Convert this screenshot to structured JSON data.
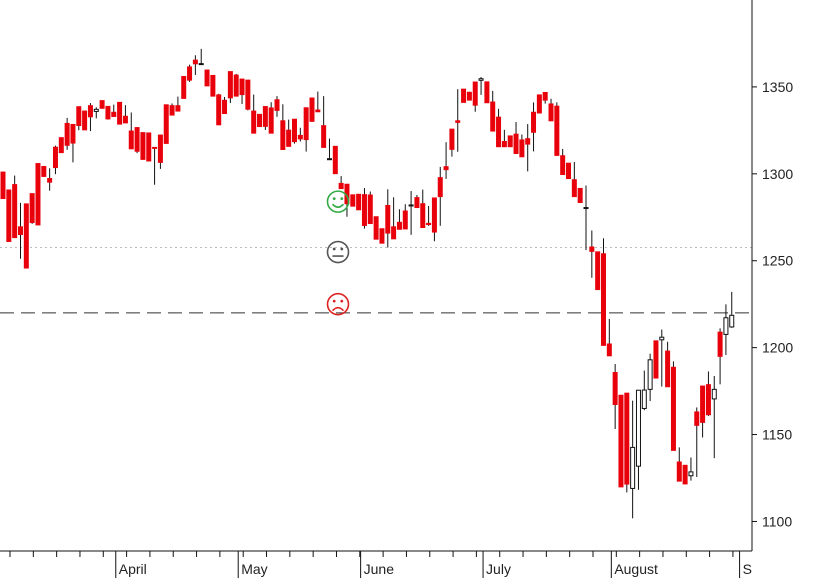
{
  "chart_data": {
    "type": "candlestick",
    "y_axis": {
      "position": "right",
      "ylim": [
        1083,
        1400
      ],
      "ticks": [
        1100,
        1150,
        1200,
        1250,
        1300,
        1350
      ],
      "tick_labels": [
        "1100",
        "1150",
        "1200",
        "1250",
        "1300",
        "1350"
      ]
    },
    "x_axis": {
      "months": [
        {
          "label": "April",
          "index": 19
        },
        {
          "label": "May",
          "index": 40
        },
        {
          "label": "June",
          "index": 61
        },
        {
          "label": "July",
          "index": 82
        },
        {
          "label": "August",
          "index": 104
        },
        {
          "label": "S",
          "index": 126
        }
      ]
    },
    "reference_lines": [
      {
        "value": 1257.6,
        "style": "dotted",
        "color": "#bbbbbb"
      },
      {
        "value": 1220.0,
        "style": "dashed",
        "color": "#333333"
      }
    ],
    "indicators": [
      {
        "name": "smiley-face",
        "symbol": "☺",
        "color": "#33aa44",
        "value": 1284
      },
      {
        "name": "neutral-face",
        "symbol": "😐",
        "color": "#555555",
        "value": 1255
      },
      {
        "name": "sad-face",
        "symbol": "☹",
        "color": "#dd2222",
        "value": 1225
      }
    ],
    "colors": {
      "up": "#ffffff",
      "up_border": "#111111",
      "down": "#e8000b",
      "wick": "#111111"
    },
    "candles": [
      [
        1296.1,
        1301.0,
        1285.8,
        1289.2
      ],
      [
        1288.0,
        1290.7,
        1261.1,
        1285.7
      ],
      [
        1291.3,
        1293.8,
        1263.3,
        1299.0
      ],
      [
        1251.1,
        1269.5,
        1265.1,
        1283.3
      ],
      [
        1281.9,
        1282.7,
        1245.8,
        1271.2
      ],
      [
        1271.2,
        1288.6,
        1272.0,
        1288.0
      ],
      [
        1287.7,
        1305.9,
        1270.6,
        1301.8
      ],
      [
        1299.0,
        1304.2,
        1298.5,
        1299.5
      ],
      [
        1290.3,
        1297.3,
        1295.2,
        1303.2
      ],
      [
        1299.8,
        1315.3,
        1303.6,
        1316.2
      ],
      [
        1312.6,
        1320.8,
        1312.2,
        1316.1
      ],
      [
        1313.8,
        1329.0,
        1316.4,
        1332.2
      ],
      [
        1306.6,
        1328.4,
        1317.7,
        1325.0
      ],
      [
        1325.1,
        1338.6,
        1327.8,
        1335.5
      ],
      [
        1327.1,
        1336.1,
        1325.3,
        1335.5
      ],
      [
        1324.6,
        1339.2,
        1332.8,
        1340.7
      ],
      [
        1331.9,
        1335.9,
        1337.1,
        1338.3
      ],
      [
        1338.4,
        1342.1,
        1337.7,
        1341.2
      ],
      [
        1331.2,
        1338.8,
        1331.6,
        1338.8
      ],
      [
        1336.6,
        1335.4,
        1333.0,
        1339.8
      ],
      [
        1341.2,
        1341.1,
        1328.6,
        1338.6
      ],
      [
        1336.5,
        1333.1,
        1329.3,
        1339.5
      ],
      [
        1331.5,
        1324.6,
        1314.4,
        1335.3
      ],
      [
        1311.9,
        1326.6,
        1313.0,
        1316.5
      ],
      [
        1314.1,
        1323.7,
        1308.3,
        1318.2
      ],
      [
        1313.2,
        1323.5,
        1307.4,
        1321.0
      ],
      [
        1293.7,
        1315.2,
        1315.1,
        1305.4
      ],
      [
        1302.8,
        1322.3,
        1306.6,
        1310.4
      ],
      [
        1326.6,
        1339.7,
        1317.5,
        1339.8
      ],
      [
        1337.6,
        1339.2,
        1333.8,
        1340.5
      ],
      [
        1336.3,
        1339.2,
        1336.1,
        1344.4
      ],
      [
        1345.2,
        1356.0,
        1343.4,
        1355.7
      ],
      [
        1352.9,
        1361.5,
        1353.9,
        1362.8
      ],
      [
        1356.9,
        1365.4,
        1363.3,
        1368.2
      ],
      [
        1367.8,
        1362.9,
        1363.4,
        1371.9
      ],
      [
        1359.2,
        1359.7,
        1350.6,
        1354.1
      ],
      [
        1353.7,
        1356.6,
        1344.7,
        1348.7
      ],
      [
        1346.0,
        1345.4,
        1328.2,
        1335.6
      ],
      [
        1342.7,
        1342.3,
        1334.7,
        1344.2
      ],
      [
        1340.7,
        1358.8,
        1343.7,
        1357.6
      ],
      [
        1357.5,
        1356.8,
        1344.7,
        1351.1
      ],
      [
        1340.2,
        1354.5,
        1345.6,
        1352.2
      ],
      [
        1336.5,
        1353.9,
        1337.2,
        1345.5
      ],
      [
        1345.6,
        1336.1,
        1323.4,
        1337.3
      ],
      [
        1329.0,
        1334.2,
        1327.2,
        1331.0
      ],
      [
        1325.2,
        1338.7,
        1327.3,
        1329.1
      ],
      [
        1325.1,
        1337.9,
        1323.4,
        1341.2
      ],
      [
        1332.8,
        1342.6,
        1336.5,
        1344.7
      ],
      [
        1340.0,
        1330.5,
        1314.0,
        1337.5
      ],
      [
        1327.0,
        1325.1,
        1315.8,
        1331.2
      ],
      [
        1317.4,
        1331.4,
        1318.5,
        1322.8
      ],
      [
        1318.6,
        1322.1,
        1320.1,
        1326.5
      ],
      [
        1312.8,
        1338.0,
        1319.7,
        1331.3
      ],
      [
        1330.6,
        1343.6,
        1330.2,
        1343.1
      ],
      [
        1344.4,
        1336.7,
        1335.7,
        1347.3
      ],
      [
        1344.4,
        1327.7,
        1315.2,
        1344.7
      ],
      [
        1320.3,
        1308.6,
        1308.7,
        1316.2
      ],
      [
        1299.9,
        1315.8,
        1300.1,
        1300.6
      ],
      [
        1298.7,
        1294.5,
        1291.5,
        1293.8
      ],
      [
        1275.3,
        1294.0,
        1282.8,
        1286.2
      ],
      [
        1283.7,
        1287.9,
        1281.4,
        1286.4
      ],
      [
        1285.1,
        1288.2,
        1279.3,
        1283.5
      ],
      [
        1268.5,
        1288.0,
        1270.3,
        1291.8
      ],
      [
        1281.1,
        1287.8,
        1271.4,
        1289.8
      ],
      [
        1270.9,
        1275.3,
        1262.4,
        1263.7
      ],
      [
        1264.9,
        1268.4,
        1260.1,
        1264.7
      ],
      [
        1257.6,
        1281.8,
        1265.9,
        1291.1
      ],
      [
        1285.7,
        1269.5,
        1262.6,
        1286.5
      ],
      [
        1275.9,
        1272.1,
        1268.1,
        1279.6
      ],
      [
        1269.7,
        1278.6,
        1268.3,
        1282.5
      ],
      [
        1264.9,
        1281.5,
        1282.1,
        1290.1
      ],
      [
        1287.8,
        1286.3,
        1280.6,
        1287.2
      ],
      [
        1286.0,
        1282.8,
        1269.1,
        1290.9
      ],
      [
        1270.1,
        1271.5,
        1270.8,
        1281.5
      ],
      [
        1261.2,
        1286.1,
        1266.5,
        1281.0
      ],
      [
        1270.1,
        1297.8,
        1286.9,
        1304.0
      ],
      [
        1297.1,
        1304.1,
        1302.4,
        1318.2
      ],
      [
        1309.9,
        1325.7,
        1314.1,
        1317.9
      ],
      [
        1312.7,
        1330.5,
        1329.6,
        1348.7
      ],
      [
        1341.6,
        1348.7,
        1341.1,
        1347.5
      ],
      [
        1347.2,
        1346.9,
        1342.4,
        1343.5
      ],
      [
        1335.7,
        1352.8,
        1339.5,
        1350.3
      ],
      [
        1345.4,
        1353.8,
        1354.7,
        1355.7
      ],
      [
        1342.8,
        1352.9,
        1340.9,
        1349.4
      ],
      [
        1347.7,
        1341.3,
        1324.6,
        1347.0
      ],
      [
        1337.4,
        1332.6,
        1315.6,
        1330.0
      ],
      [
        1325.3,
        1318.6,
        1315.6,
        1318.4
      ],
      [
        1320.6,
        1321.8,
        1315.6,
        1320.2
      ],
      [
        1319.0,
        1322.8,
        1311.7,
        1329.8
      ],
      [
        1315.0,
        1319.5,
        1309.8,
        1322.6
      ],
      [
        1301.4,
        1320.2,
        1317.1,
        1328.6
      ],
      [
        1312.9,
        1335.4,
        1323.9,
        1341.1
      ],
      [
        1344.5,
        1345.4,
        1335.0,
        1344.2
      ],
      [
        1340.4,
        1346.8,
        1342.4,
        1345.8
      ],
      [
        1343.2,
        1340.2,
        1330.5,
        1342.3
      ],
      [
        1335.6,
        1338.9,
        1310.6,
        1341.1
      ],
      [
        1314.3,
        1310.4,
        1299.6,
        1302.1
      ],
      [
        1297.6,
        1306.1,
        1297.3,
        1303.3
      ],
      [
        1306.8,
        1296.6,
        1286.9,
        1289.2
      ],
      [
        1290.1,
        1291.6,
        1283.5,
        1289.9
      ],
      [
        1256.1,
        1280.6,
        1280.6,
        1293.3
      ],
      [
        1240.2,
        1257.9,
        1255.4,
        1267.4
      ],
      [
        1234.3,
        1255.1,
        1233.4,
        1253.5
      ],
      [
        1205.0,
        1254.0,
        1201.3,
        1262.9
      ],
      [
        1198.0,
        1202.1,
        1195.3,
        1216.5
      ],
      [
        1153.2,
        1185.7,
        1167.3,
        1190.6
      ],
      [
        1124.1,
        1172.6,
        1119.9,
        1172.1
      ],
      [
        1116.7,
        1173.8,
        1121.5,
        1161.9
      ],
      [
        1101.8,
        1119.0,
        1142.6,
        1169.5
      ],
      [
        1118.2,
        1131.8,
        1175.5,
        1175.6
      ],
      [
        1164.0,
        1165.0,
        1175.6,
        1186.8
      ],
      [
        1169.3,
        1176.0,
        1193.0,
        1196.5
      ],
      [
        1193.5,
        1203.9,
        1182.5,
        1200.0
      ],
      [
        1177.6,
        1204.5,
        1206.0,
        1210.4
      ],
      [
        1187.0,
        1198.0,
        1177.5,
        1203.4
      ],
      [
        1184.1,
        1188.7,
        1140.9,
        1192.1
      ],
      [
        1135.2,
        1134.2,
        1123.2,
        1142.6
      ],
      [
        1123.1,
        1132.3,
        1121.6,
        1128.1
      ],
      [
        1123.5,
        1126.3,
        1128.5,
        1136.8
      ],
      [
        1125.6,
        1163.0,
        1155.3,
        1165.6
      ],
      [
        1148.3,
        1177.9,
        1157.0,
        1177.9
      ],
      [
        1160.7,
        1178.7,
        1161.4,
        1186.3
      ],
      [
        1136.4,
        1170.5,
        1176.0,
        1183.7
      ],
      [
        1178.9,
        1208.9,
        1195.0,
        1211.1
      ],
      [
        1195.8,
        1207.6,
        1217.2,
        1224.9
      ],
      [
        1211.4,
        1211.9,
        1218.6,
        1232.1
      ]
    ]
  }
}
